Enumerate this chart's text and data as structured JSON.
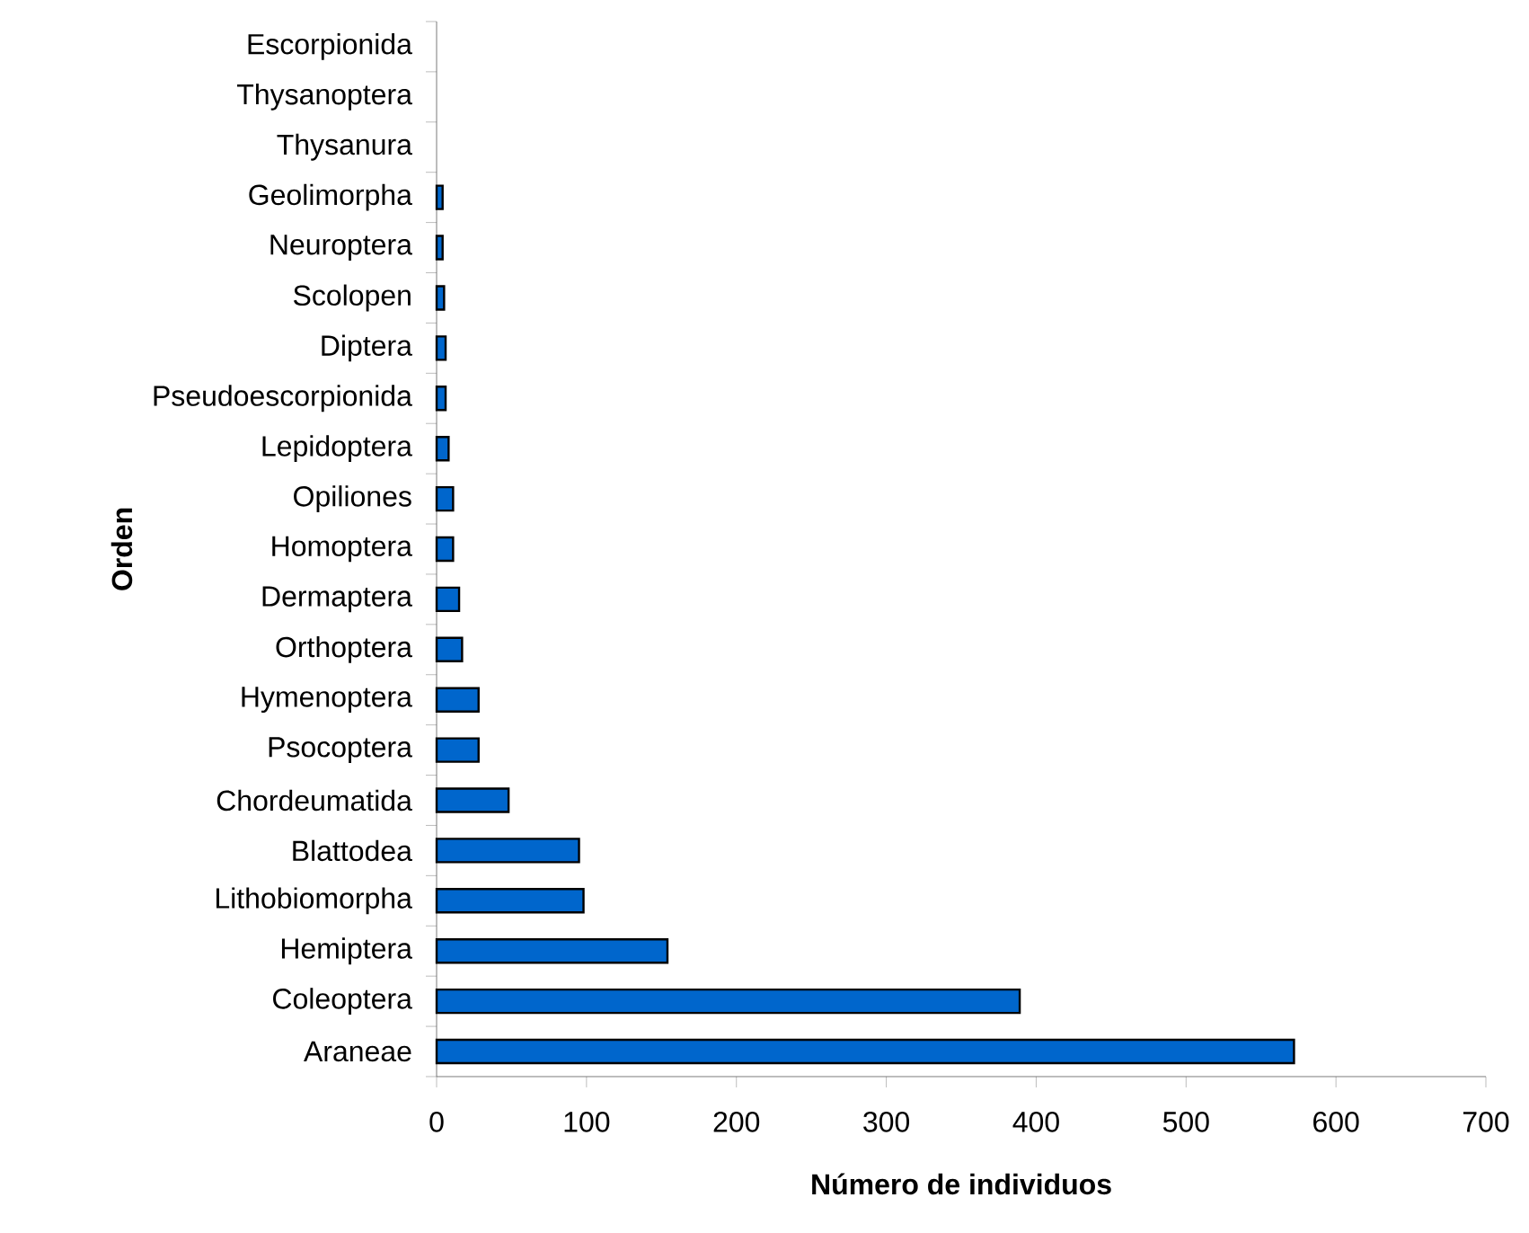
{
  "chart_data": {
    "type": "bar",
    "orientation": "horizontal",
    "categories": [
      "Escorpionida",
      "Thysanoptera",
      "Thysanura",
      "Geolimorpha",
      "Neuroptera",
      "Scolopen",
      "Diptera",
      "Pseudoescorpionida",
      "Lepidoptera",
      "Opiliones",
      "Homoptera",
      "Dermaptera",
      "Orthoptera",
      "Hymenoptera",
      "Psocoptera",
      "Chordeumatida",
      "Blattodea",
      "Lithobiomorpha",
      "Hemiptera",
      "Coleoptera",
      "Araneae"
    ],
    "values": [
      0,
      0,
      0,
      4,
      4,
      5,
      6,
      6,
      8,
      11,
      11,
      15,
      17,
      28,
      28,
      48,
      95,
      98,
      154,
      389,
      572
    ],
    "color": "#0066cc",
    "xlim": [
      0,
      700
    ],
    "xticks": [
      0,
      100,
      200,
      300,
      400,
      500,
      600,
      700
    ],
    "xlabel": "Número de individuos",
    "ylabel": "Orden"
  }
}
